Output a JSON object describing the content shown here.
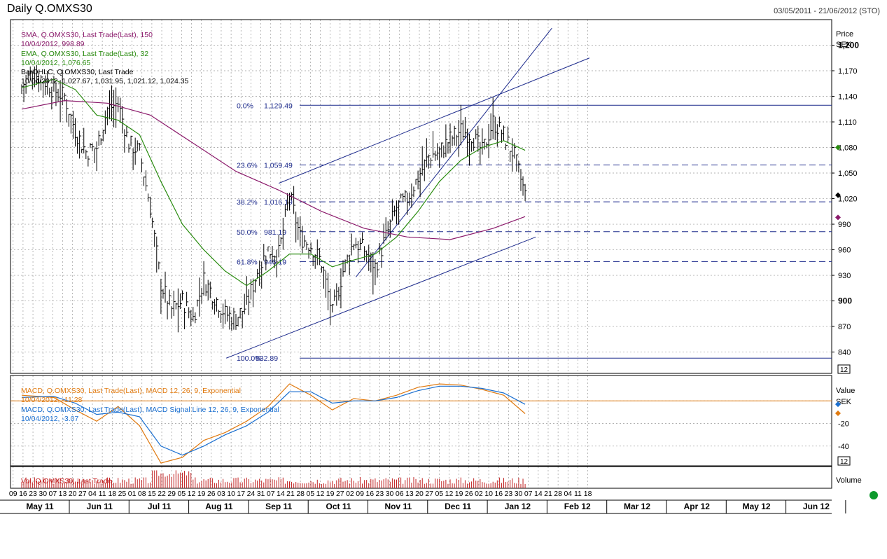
{
  "header": {
    "title": "Daily Q.OMXS30",
    "date_range": "03/05/2011 - 21/06/2012 (STO)"
  },
  "price_pane": {
    "axis_title": "Price",
    "axis_unit": "SEK",
    "legend": [
      {
        "text": "SMA, Q.OMXS30, Last Trade(Last), 150",
        "color": "#8b1a6b"
      },
      {
        "text": "10/04/2012, 998.89",
        "color": "#8b1a6b"
      },
      {
        "text": "EMA, Q.OMXS30, Last Trade(Last), 32",
        "color": "#2a8c10"
      },
      {
        "text": "10/04/2012, 1,076.65",
        "color": "#2a8c10"
      },
      {
        "text": "BarOHLC, Q.OMXS30, Last Trade",
        "color": "#000000"
      },
      {
        "text": "10/04/2012, 1,027.67, 1,031.95, 1,021.12, 1,024.35",
        "color": "#000000"
      }
    ],
    "y_ticks": [
      {
        "v": 1200,
        "t": "1,200",
        "bold": true
      },
      {
        "v": 1170,
        "t": "1,170"
      },
      {
        "v": 1140,
        "t": "1,140"
      },
      {
        "v": 1110,
        "t": "1,110"
      },
      {
        "v": 1080,
        "t": "1,080"
      },
      {
        "v": 1050,
        "t": "1,050"
      },
      {
        "v": 1020,
        "t": "1,020"
      },
      {
        "v": 990,
        "t": "990"
      },
      {
        "v": 960,
        "t": "960"
      },
      {
        "v": 930,
        "t": "930"
      },
      {
        "v": 900,
        "t": "900",
        "bold": true
      },
      {
        "v": 870,
        "t": "870"
      },
      {
        "v": 840,
        "t": "840"
      }
    ],
    "scale_box": "12",
    "fib_levels": [
      {
        "pct": "0.0%",
        "value": "1,129.49",
        "v": 1129.49
      },
      {
        "pct": "23.6%",
        "value": "1,059.49",
        "v": 1059.49
      },
      {
        "pct": "38.2%",
        "value": "1,016.19",
        "v": 1016.19
      },
      {
        "pct": "50.0%",
        "value": "981.19",
        "v": 981.19
      },
      {
        "pct": "61.8%",
        "value": "946.19",
        "v": 946.19
      },
      {
        "pct": "100.0%",
        "value": "832.89",
        "v": 832.89
      }
    ]
  },
  "macd_pane": {
    "axis_title": "Value",
    "axis_unit": "SEK",
    "legend": [
      {
        "text": "MACD, Q.OMXS30, Last Trade(Last), MACD 12, 26, 9, Exponential",
        "color": "#e07a10"
      },
      {
        "text": "10/04/2012, -11.28",
        "color": "#e07a10"
      },
      {
        "text": "MACD, Q.OMXS30, Last Trade(Last), MACD Signal Line 12, 26, 9, Exponential",
        "color": "#1a6fd0"
      },
      {
        "text": "10/04/2012, -3.07",
        "color": "#1a6fd0"
      }
    ],
    "y_ticks": [
      {
        "v": -20,
        "t": "-20"
      },
      {
        "v": -40,
        "t": "-40"
      }
    ],
    "scale_box": "12"
  },
  "volume_pane": {
    "axis_title": "Volume",
    "legend": "Vol, Q.OMXS30, Last Trade"
  },
  "x_axis": {
    "day_ticks": [
      "09",
      "16",
      "23",
      "30",
      "07",
      "13",
      "20",
      "27",
      "04",
      "11",
      "18",
      "25",
      "01",
      "08",
      "15",
      "22",
      "29",
      "05",
      "12",
      "19",
      "26",
      "03",
      "10",
      "17",
      "24",
      "31",
      "07",
      "14",
      "21",
      "28",
      "05",
      "12",
      "19",
      "27",
      "02",
      "09",
      "16",
      "23",
      "30",
      "06",
      "13",
      "20",
      "27",
      "05",
      "12",
      "19",
      "26",
      "02",
      "10",
      "16",
      "23",
      "30",
      "07",
      "14",
      "21",
      "28",
      "04",
      "11",
      "18"
    ],
    "months": [
      "May 11",
      "Jun 11",
      "Jul 11",
      "Aug 11",
      "Sep 11",
      "Oct 11",
      "Nov 11",
      "Dec 11",
      "Jan 12",
      "Feb 12",
      "Mar 12",
      "Apr 12",
      "May 12",
      "Jun 12"
    ]
  },
  "chart_data": {
    "type": "bar",
    "title": "Daily Q.OMXS30",
    "subtitle": "03/05/2011 - 21/06/2012 (STO)",
    "ylabel": "Price SEK",
    "ylim": [
      815,
      1230
    ],
    "x_start_week": "2011-05-09",
    "last_bar": {
      "date": "10/04/2012",
      "open": 1027.67,
      "high": 1031.95,
      "low": 1021.12,
      "close": 1024.35
    },
    "weekly_close_path": [
      {
        "w": 0,
        "v": 1152
      },
      {
        "w": 1,
        "v": 1168
      },
      {
        "w": 2,
        "v": 1160
      },
      {
        "w": 3,
        "v": 1147
      },
      {
        "w": 4,
        "v": 1140
      },
      {
        "w": 5,
        "v": 1100
      },
      {
        "w": 6,
        "v": 1075
      },
      {
        "w": 7,
        "v": 1080
      },
      {
        "w": 8,
        "v": 1125
      },
      {
        "w": 9,
        "v": 1132
      },
      {
        "w": 10,
        "v": 1085
      },
      {
        "w": 11,
        "v": 1075
      },
      {
        "w": 12,
        "v": 1010
      },
      {
        "w": 13,
        "v": 920
      },
      {
        "w": 14,
        "v": 890
      },
      {
        "w": 15,
        "v": 900
      },
      {
        "w": 16,
        "v": 880
      },
      {
        "w": 17,
        "v": 925
      },
      {
        "w": 18,
        "v": 905
      },
      {
        "w": 19,
        "v": 885
      },
      {
        "w": 20,
        "v": 880
      },
      {
        "w": 21,
        "v": 895
      },
      {
        "w": 22,
        "v": 935
      },
      {
        "w": 23,
        "v": 960
      },
      {
        "w": 24,
        "v": 955
      },
      {
        "w": 25,
        "v": 1025
      },
      {
        "w": 26,
        "v": 975
      },
      {
        "w": 27,
        "v": 965
      },
      {
        "w": 28,
        "v": 945
      },
      {
        "w": 29,
        "v": 885
      },
      {
        "w": 30,
        "v": 935
      },
      {
        "w": 31,
        "v": 970
      },
      {
        "w": 32,
        "v": 960
      },
      {
        "w": 33,
        "v": 940
      },
      {
        "w": 34,
        "v": 975
      },
      {
        "w": 35,
        "v": 1010
      },
      {
        "w": 36,
        "v": 1020
      },
      {
        "w": 37,
        "v": 1045
      },
      {
        "w": 38,
        "v": 1070
      },
      {
        "w": 39,
        "v": 1075
      },
      {
        "w": 40,
        "v": 1090
      },
      {
        "w": 41,
        "v": 1100
      },
      {
        "w": 42,
        "v": 1095
      },
      {
        "w": 43,
        "v": 1075
      },
      {
        "w": 44,
        "v": 1110
      },
      {
        "w": 45,
        "v": 1095
      },
      {
        "w": 46,
        "v": 1070
      },
      {
        "w": 47,
        "v": 1024
      }
    ],
    "series": [
      {
        "name": "SMA, Q.OMXS30, Last Trade(Last), 150",
        "color": "#8b1a6b",
        "points": [
          [
            0,
            1125
          ],
          [
            4,
            1135
          ],
          [
            8,
            1132
          ],
          [
            12,
            1118
          ],
          [
            16,
            1085
          ],
          [
            20,
            1052
          ],
          [
            24,
            1030
          ],
          [
            28,
            1005
          ],
          [
            32,
            985
          ],
          [
            36,
            975
          ],
          [
            40,
            972
          ],
          [
            44,
            985
          ],
          [
            47,
            998.89
          ]
        ]
      },
      {
        "name": "EMA, Q.OMXS30, Last Trade(Last), 32",
        "color": "#2a8c10",
        "points": [
          [
            0,
            1150
          ],
          [
            3,
            1160
          ],
          [
            5,
            1148
          ],
          [
            7,
            1118
          ],
          [
            9,
            1112
          ],
          [
            11,
            1095
          ],
          [
            13,
            1040
          ],
          [
            15,
            990
          ],
          [
            17,
            960
          ],
          [
            19,
            935
          ],
          [
            21,
            918
          ],
          [
            23,
            935
          ],
          [
            25,
            955
          ],
          [
            27,
            955
          ],
          [
            29,
            940
          ],
          [
            31,
            948
          ],
          [
            33,
            955
          ],
          [
            35,
            975
          ],
          [
            37,
            1005
          ],
          [
            39,
            1040
          ],
          [
            41,
            1065
          ],
          [
            43,
            1080
          ],
          [
            45,
            1088
          ],
          [
            47,
            1076.65
          ]
        ]
      },
      {
        "name": "MACD 12, 26, 9",
        "color": "#e07a10",
        "points": [
          [
            0,
            5
          ],
          [
            3,
            3
          ],
          [
            5,
            -8
          ],
          [
            7,
            -18
          ],
          [
            9,
            -5
          ],
          [
            11,
            -22
          ],
          [
            13,
            -55
          ],
          [
            15,
            -50
          ],
          [
            17,
            -35
          ],
          [
            19,
            -28
          ],
          [
            21,
            -18
          ],
          [
            23,
            -5
          ],
          [
            25,
            15
          ],
          [
            27,
            5
          ],
          [
            29,
            -8
          ],
          [
            31,
            2
          ],
          [
            33,
            0
          ],
          [
            35,
            5
          ],
          [
            37,
            12
          ],
          [
            39,
            15
          ],
          [
            41,
            14
          ],
          [
            43,
            10
          ],
          [
            45,
            5
          ],
          [
            47,
            -11.28
          ]
        ]
      },
      {
        "name": "MACD Signal Line 12, 26, 9",
        "color": "#1a6fd0",
        "points": [
          [
            0,
            3
          ],
          [
            3,
            4
          ],
          [
            5,
            -2
          ],
          [
            7,
            -12
          ],
          [
            9,
            -10
          ],
          [
            11,
            -14
          ],
          [
            13,
            -40
          ],
          [
            15,
            -48
          ],
          [
            17,
            -40
          ],
          [
            19,
            -30
          ],
          [
            21,
            -22
          ],
          [
            23,
            -10
          ],
          [
            25,
            8
          ],
          [
            27,
            8
          ],
          [
            29,
            -2
          ],
          [
            31,
            0
          ],
          [
            33,
            0
          ],
          [
            35,
            3
          ],
          [
            37,
            9
          ],
          [
            39,
            13
          ],
          [
            41,
            13
          ],
          [
            43,
            11
          ],
          [
            45,
            7
          ],
          [
            47,
            -3.07
          ]
        ]
      }
    ],
    "trendlines": [
      {
        "from": [
          19.1,
          832.89
        ],
        "to": [
          48.0,
          975
        ]
      },
      {
        "from": [
          24.0,
          1038
        ],
        "to": [
          53.0,
          1185
        ]
      },
      {
        "from": [
          31.2,
          928
        ],
        "to": [
          49.5,
          1220
        ]
      }
    ]
  }
}
